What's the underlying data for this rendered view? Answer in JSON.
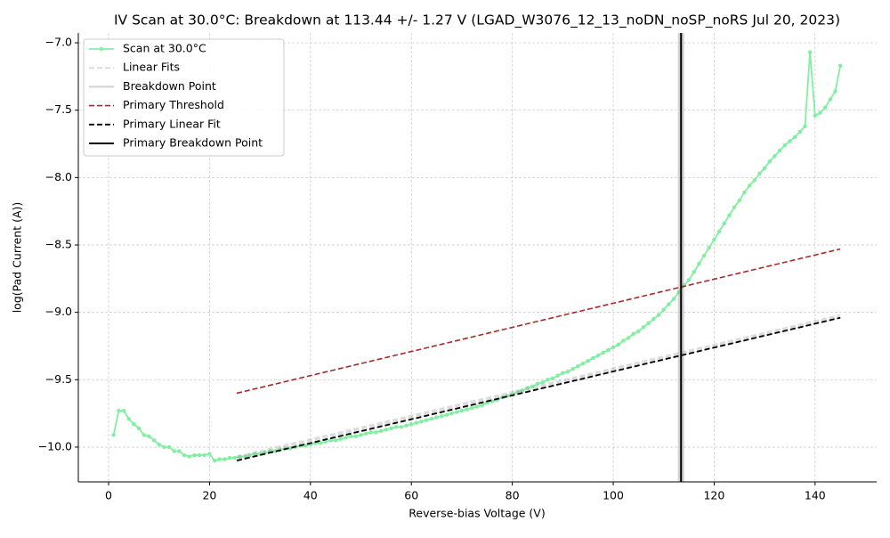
{
  "chart_data": {
    "type": "line",
    "title": "IV Scan at 30.0°C: Breakdown at 113.44 +/- 1.27 V (LGAD_W3076_12_13_noDN_noSP_noRS Jul 20, 2023)",
    "x_label": "Reverse-bias Voltage (V)",
    "y_label": "log(Pad Current (A))",
    "xlim": [
      -6,
      152.2
    ],
    "ylim": [
      -10.258,
      -6.927
    ],
    "xticks": [
      0,
      20,
      40,
      60,
      80,
      100,
      120,
      140
    ],
    "yticks": [
      {
        "value": -10.0,
        "label": "−10.0"
      },
      {
        "value": -9.5,
        "label": "−9.5"
      },
      {
        "value": -9.0,
        "label": "−9.0"
      },
      {
        "value": -8.5,
        "label": "−8.5"
      },
      {
        "value": -8.0,
        "label": "−8.0"
      },
      {
        "value": -7.5,
        "label": "−7.5"
      },
      {
        "value": -7.0,
        "label": "−7.0"
      }
    ],
    "grid": true,
    "legend": "upper-left",
    "series": [
      {
        "name": "Scan at 30.0°C",
        "kind": "line",
        "color": "#80f0a0",
        "markers": true,
        "dash": "solid",
        "width": 1.8,
        "opacity": 1,
        "x": [
          1,
          2,
          3,
          4,
          5,
          6,
          7,
          8,
          9,
          10,
          11,
          12,
          13,
          14,
          15,
          16,
          17,
          18,
          19,
          20,
          21,
          22,
          23,
          24,
          25,
          26,
          27,
          28,
          29,
          30,
          31,
          32,
          33,
          34,
          35,
          36,
          37,
          38,
          39,
          40,
          41,
          42,
          43,
          44,
          45,
          46,
          47,
          48,
          49,
          50,
          51,
          52,
          53,
          54,
          55,
          56,
          57,
          58,
          59,
          60,
          61,
          62,
          63,
          64,
          65,
          66,
          67,
          68,
          69,
          70,
          71,
          72,
          73,
          74,
          75,
          76,
          77,
          78,
          79,
          80,
          81,
          82,
          83,
          84,
          85,
          86,
          87,
          88,
          89,
          90,
          91,
          92,
          93,
          94,
          95,
          96,
          97,
          98,
          99,
          100,
          101,
          102,
          103,
          104,
          105,
          106,
          107,
          108,
          109,
          110,
          111,
          112,
          113,
          114,
          115,
          116,
          117,
          118,
          119,
          120,
          121,
          122,
          123,
          124,
          125,
          126,
          127,
          128,
          129,
          130,
          131,
          132,
          133,
          134,
          135,
          136,
          137,
          138,
          139,
          140,
          141,
          142,
          143,
          144,
          145
        ],
        "values": [
          -9.91,
          -9.73,
          -9.73,
          -9.79,
          -9.83,
          -9.86,
          -9.91,
          -9.92,
          -9.95,
          -9.98,
          -10.0,
          -10.0,
          -10.03,
          -10.03,
          -10.06,
          -10.07,
          -10.06,
          -10.06,
          -10.06,
          -10.05,
          -10.1,
          -10.09,
          -10.09,
          -10.08,
          -10.08,
          -10.07,
          -10.07,
          -10.06,
          -10.05,
          -10.05,
          -10.04,
          -10.03,
          -10.03,
          -10.02,
          -10.01,
          -10.01,
          -10.0,
          -9.99,
          -9.99,
          -9.98,
          -9.97,
          -9.97,
          -9.96,
          -9.95,
          -9.95,
          -9.94,
          -9.93,
          -9.92,
          -9.92,
          -9.91,
          -9.9,
          -9.89,
          -9.89,
          -9.88,
          -9.87,
          -9.86,
          -9.85,
          -9.85,
          -9.84,
          -9.83,
          -9.82,
          -9.81,
          -9.8,
          -9.79,
          -9.78,
          -9.77,
          -9.76,
          -9.75,
          -9.74,
          -9.73,
          -9.72,
          -9.71,
          -9.7,
          -9.69,
          -9.67,
          -9.66,
          -9.65,
          -9.63,
          -9.62,
          -9.61,
          -9.59,
          -9.58,
          -9.56,
          -9.55,
          -9.53,
          -9.52,
          -9.5,
          -9.49,
          -9.47,
          -9.45,
          -9.44,
          -9.42,
          -9.4,
          -9.38,
          -9.36,
          -9.34,
          -9.32,
          -9.3,
          -9.28,
          -9.26,
          -9.24,
          -9.21,
          -9.19,
          -9.16,
          -9.14,
          -9.11,
          -9.08,
          -9.05,
          -9.02,
          -8.98,
          -8.94,
          -8.9,
          -8.85,
          -8.8,
          -8.76,
          -8.7,
          -8.64,
          -8.58,
          -8.52,
          -8.46,
          -8.4,
          -8.34,
          -8.28,
          -8.22,
          -8.17,
          -8.11,
          -8.06,
          -8.02,
          -7.97,
          -7.93,
          -7.88,
          -7.84,
          -7.8,
          -7.76,
          -7.73,
          -7.7,
          -7.66,
          -7.62,
          -7.07,
          -7.54,
          -7.52,
          -7.48,
          -7.42,
          -7.36,
          -7.17
        ]
      },
      {
        "name": "Linear Fits",
        "kind": "line",
        "color": "#9a9a9a",
        "markers": false,
        "dash": "dashed",
        "width": 5,
        "opacity": 0.35,
        "x": [
          25.4,
          145
        ],
        "values": [
          -10.08,
          -9.03
        ]
      },
      {
        "name": "Breakdown Point",
        "kind": "vline",
        "color": "#9a9a9a",
        "dash": "solid",
        "width": 7,
        "opacity": 0.45,
        "x": [
          113.44
        ]
      },
      {
        "name": "Primary Threshold",
        "kind": "line",
        "color": "#a52a2a",
        "markers": false,
        "dash": "dashed",
        "width": 1.6,
        "opacity": 1,
        "x": [
          25.4,
          145
        ],
        "values": [
          -9.6,
          -8.53
        ]
      },
      {
        "name": "Primary Linear Fit",
        "kind": "line",
        "color": "#000000",
        "markers": false,
        "dash": "dashed",
        "width": 1.8,
        "opacity": 1,
        "x": [
          25.4,
          145
        ],
        "values": [
          -10.1,
          -9.04
        ]
      },
      {
        "name": "Primary Breakdown Point",
        "kind": "vline",
        "color": "#000000",
        "dash": "solid",
        "width": 2,
        "opacity": 1,
        "x": [
          113.44
        ]
      }
    ]
  }
}
